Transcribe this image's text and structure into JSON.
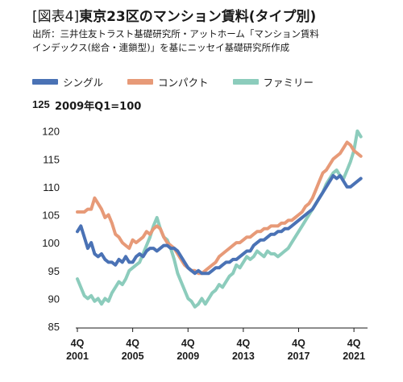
{
  "header": {
    "title_bracket": "[図表4]",
    "title_main": "東京23区のマンション賃料(タイプ別)",
    "source_line1": "出所：三井住友トラスト基礎研究所・アットホーム「マンション賃料",
    "source_line2": "インデックス(総合・連鎖型)」を基にニッセイ基礎研究所作成"
  },
  "chart_data": {
    "type": "line",
    "title": "東京23区のマンション賃料(タイプ別)",
    "axis_note": "2009年Q1=100",
    "ylim": [
      85,
      125
    ],
    "yticks": [
      85,
      90,
      95,
      100,
      105,
      110,
      115,
      120,
      125
    ],
    "xlim": [
      2001.75,
      2022.5
    ],
    "xticks": [
      {
        "x": 2001.75,
        "label_q": "4Q",
        "label_year": "2001"
      },
      {
        "x": 2005.75,
        "label_q": "4Q",
        "label_year": "2005"
      },
      {
        "x": 2009.75,
        "label_q": "4Q",
        "label_year": "2009"
      },
      {
        "x": 2013.75,
        "label_q": "4Q",
        "label_year": "2013"
      },
      {
        "x": 2017.75,
        "label_q": "4Q",
        "label_year": "2017"
      },
      {
        "x": 2021.75,
        "label_q": "4Q",
        "label_year": "2021"
      }
    ],
    "grid": false,
    "legend": "top",
    "series": [
      {
        "name": "シングル",
        "color": "#4a72b5",
        "points": [
          [
            2001.75,
            102.0
          ],
          [
            2002.0,
            103.0
          ],
          [
            2002.25,
            101.0
          ],
          [
            2002.5,
            99.0
          ],
          [
            2002.75,
            100.0
          ],
          [
            2003.0,
            98.0
          ],
          [
            2003.25,
            97.5
          ],
          [
            2003.5,
            98.0
          ],
          [
            2003.75,
            97.0
          ],
          [
            2004.0,
            96.5
          ],
          [
            2004.25,
            96.5
          ],
          [
            2004.5,
            96.0
          ],
          [
            2004.75,
            97.0
          ],
          [
            2005.0,
            96.5
          ],
          [
            2005.25,
            97.5
          ],
          [
            2005.5,
            96.5
          ],
          [
            2005.75,
            96.5
          ],
          [
            2006.0,
            97.5
          ],
          [
            2006.25,
            98.0
          ],
          [
            2006.5,
            97.5
          ],
          [
            2006.75,
            98.5
          ],
          [
            2007.0,
            99.0
          ],
          [
            2007.25,
            99.0
          ],
          [
            2007.5,
            98.5
          ],
          [
            2007.75,
            99.0
          ],
          [
            2008.0,
            99.5
          ],
          [
            2008.25,
            99.5
          ],
          [
            2008.5,
            99.0
          ],
          [
            2008.75,
            99.0
          ],
          [
            2009.0,
            98.5
          ],
          [
            2009.25,
            97.5
          ],
          [
            2009.5,
            96.5
          ],
          [
            2009.75,
            95.5
          ],
          [
            2010.0,
            95.0
          ],
          [
            2010.25,
            94.5
          ],
          [
            2010.5,
            95.0
          ],
          [
            2010.75,
            94.5
          ],
          [
            2011.0,
            94.5
          ],
          [
            2011.25,
            94.5
          ],
          [
            2011.5,
            95.0
          ],
          [
            2011.75,
            95.5
          ],
          [
            2012.0,
            95.5
          ],
          [
            2012.25,
            96.0
          ],
          [
            2012.5,
            96.5
          ],
          [
            2012.75,
            96.5
          ],
          [
            2013.0,
            97.0
          ],
          [
            2013.25,
            97.0
          ],
          [
            2013.5,
            97.5
          ],
          [
            2013.75,
            98.0
          ],
          [
            2014.0,
            98.5
          ],
          [
            2014.25,
            98.5
          ],
          [
            2014.5,
            99.5
          ],
          [
            2014.75,
            100.0
          ],
          [
            2015.0,
            100.5
          ],
          [
            2015.25,
            100.5
          ],
          [
            2015.5,
            101.0
          ],
          [
            2015.75,
            101.5
          ],
          [
            2016.0,
            101.5
          ],
          [
            2016.25,
            102.0
          ],
          [
            2016.5,
            102.0
          ],
          [
            2016.75,
            102.5
          ],
          [
            2017.0,
            102.5
          ],
          [
            2017.25,
            103.0
          ],
          [
            2017.5,
            103.5
          ],
          [
            2017.75,
            104.0
          ],
          [
            2018.0,
            104.5
          ],
          [
            2018.25,
            105.0
          ],
          [
            2018.5,
            105.5
          ],
          [
            2018.75,
            106.0
          ],
          [
            2019.0,
            107.0
          ],
          [
            2019.25,
            108.0
          ],
          [
            2019.5,
            109.0
          ],
          [
            2019.75,
            110.0
          ],
          [
            2020.0,
            111.0
          ],
          [
            2020.25,
            112.0
          ],
          [
            2020.5,
            111.5
          ],
          [
            2020.75,
            112.0
          ],
          [
            2021.0,
            111.0
          ],
          [
            2021.25,
            110.0
          ],
          [
            2021.5,
            110.0
          ],
          [
            2021.75,
            110.5
          ],
          [
            2022.0,
            111.0
          ],
          [
            2022.25,
            111.5
          ]
        ]
      },
      {
        "name": "コンパクト",
        "color": "#e79a78",
        "points": [
          [
            2001.75,
            105.5
          ],
          [
            2002.0,
            105.5
          ],
          [
            2002.25,
            105.5
          ],
          [
            2002.5,
            106.0
          ],
          [
            2002.75,
            106.0
          ],
          [
            2003.0,
            108.0
          ],
          [
            2003.25,
            107.0
          ],
          [
            2003.5,
            106.0
          ],
          [
            2003.75,
            104.5
          ],
          [
            2004.0,
            105.0
          ],
          [
            2004.25,
            103.5
          ],
          [
            2004.5,
            101.5
          ],
          [
            2004.75,
            101.0
          ],
          [
            2005.0,
            100.0
          ],
          [
            2005.25,
            99.5
          ],
          [
            2005.5,
            99.0
          ],
          [
            2005.75,
            100.5
          ],
          [
            2006.0,
            100.0
          ],
          [
            2006.25,
            100.5
          ],
          [
            2006.5,
            101.0
          ],
          [
            2006.75,
            102.0
          ],
          [
            2007.0,
            101.5
          ],
          [
            2007.25,
            102.5
          ],
          [
            2007.5,
            103.0
          ],
          [
            2007.75,
            102.5
          ],
          [
            2008.0,
            101.0
          ],
          [
            2008.25,
            100.0
          ],
          [
            2008.5,
            99.5
          ],
          [
            2008.75,
            99.0
          ],
          [
            2009.0,
            98.0
          ],
          [
            2009.25,
            97.0
          ],
          [
            2009.5,
            96.0
          ],
          [
            2009.75,
            95.5
          ],
          [
            2010.0,
            95.0
          ],
          [
            2010.25,
            95.0
          ],
          [
            2010.5,
            94.5
          ],
          [
            2010.75,
            94.5
          ],
          [
            2011.0,
            95.0
          ],
          [
            2011.25,
            95.5
          ],
          [
            2011.5,
            96.0
          ],
          [
            2011.75,
            96.5
          ],
          [
            2012.0,
            97.5
          ],
          [
            2012.25,
            98.0
          ],
          [
            2012.5,
            98.5
          ],
          [
            2012.75,
            99.0
          ],
          [
            2013.0,
            99.5
          ],
          [
            2013.25,
            100.0
          ],
          [
            2013.5,
            100.0
          ],
          [
            2013.75,
            100.5
          ],
          [
            2014.0,
            101.0
          ],
          [
            2014.25,
            101.0
          ],
          [
            2014.5,
            101.5
          ],
          [
            2014.75,
            102.0
          ],
          [
            2015.0,
            102.0
          ],
          [
            2015.25,
            102.5
          ],
          [
            2015.5,
            102.5
          ],
          [
            2015.75,
            103.0
          ],
          [
            2016.0,
            103.0
          ],
          [
            2016.25,
            103.0
          ],
          [
            2016.5,
            103.5
          ],
          [
            2016.75,
            103.5
          ],
          [
            2017.0,
            104.0
          ],
          [
            2017.25,
            104.0
          ],
          [
            2017.5,
            104.5
          ],
          [
            2017.75,
            105.0
          ],
          [
            2018.0,
            105.5
          ],
          [
            2018.25,
            106.5
          ],
          [
            2018.5,
            107.0
          ],
          [
            2018.75,
            108.0
          ],
          [
            2019.0,
            109.5
          ],
          [
            2019.25,
            111.0
          ],
          [
            2019.5,
            112.5
          ],
          [
            2019.75,
            113.0
          ],
          [
            2020.0,
            114.0
          ],
          [
            2020.25,
            115.0
          ],
          [
            2020.5,
            115.5
          ],
          [
            2020.75,
            116.0
          ],
          [
            2021.0,
            117.0
          ],
          [
            2021.25,
            118.0
          ],
          [
            2021.5,
            117.5
          ],
          [
            2021.75,
            116.5
          ],
          [
            2022.0,
            116.0
          ],
          [
            2022.25,
            115.5
          ]
        ]
      },
      {
        "name": "ファミリー",
        "color": "#8cccbc",
        "points": [
          [
            2001.75,
            93.5
          ],
          [
            2002.0,
            92.0
          ],
          [
            2002.25,
            90.5
          ],
          [
            2002.5,
            90.0
          ],
          [
            2002.75,
            90.5
          ],
          [
            2003.0,
            89.5
          ],
          [
            2003.25,
            90.0
          ],
          [
            2003.5,
            89.0
          ],
          [
            2003.75,
            90.0
          ],
          [
            2004.0,
            89.5
          ],
          [
            2004.25,
            91.0
          ],
          [
            2004.5,
            92.0
          ],
          [
            2004.75,
            93.0
          ],
          [
            2005.0,
            92.5
          ],
          [
            2005.25,
            93.5
          ],
          [
            2005.5,
            95.0
          ],
          [
            2005.75,
            95.5
          ],
          [
            2006.0,
            96.0
          ],
          [
            2006.25,
            96.5
          ],
          [
            2006.5,
            98.0
          ],
          [
            2006.75,
            99.5
          ],
          [
            2007.0,
            101.0
          ],
          [
            2007.25,
            103.0
          ],
          [
            2007.5,
            104.5
          ],
          [
            2007.75,
            102.5
          ],
          [
            2008.0,
            101.0
          ],
          [
            2008.25,
            100.5
          ],
          [
            2008.5,
            99.0
          ],
          [
            2008.75,
            97.0
          ],
          [
            2009.0,
            94.5
          ],
          [
            2009.25,
            93.0
          ],
          [
            2009.5,
            91.5
          ],
          [
            2009.75,
            90.0
          ],
          [
            2010.0,
            89.5
          ],
          [
            2010.25,
            88.5
          ],
          [
            2010.5,
            89.0
          ],
          [
            2010.75,
            90.0
          ],
          [
            2011.0,
            89.0
          ],
          [
            2011.25,
            90.0
          ],
          [
            2011.5,
            91.0
          ],
          [
            2011.75,
            91.5
          ],
          [
            2012.0,
            92.5
          ],
          [
            2012.25,
            92.0
          ],
          [
            2012.5,
            93.0
          ],
          [
            2012.75,
            94.0
          ],
          [
            2013.0,
            94.5
          ],
          [
            2013.25,
            96.0
          ],
          [
            2013.5,
            95.5
          ],
          [
            2013.75,
            96.5
          ],
          [
            2014.0,
            97.5
          ],
          [
            2014.25,
            97.0
          ],
          [
            2014.5,
            97.5
          ],
          [
            2014.75,
            98.5
          ],
          [
            2015.0,
            98.0
          ],
          [
            2015.25,
            97.5
          ],
          [
            2015.5,
            98.5
          ],
          [
            2015.75,
            98.0
          ],
          [
            2016.0,
            98.0
          ],
          [
            2016.25,
            97.5
          ],
          [
            2016.5,
            98.0
          ],
          [
            2016.75,
            98.5
          ],
          [
            2017.0,
            99.0
          ],
          [
            2017.25,
            100.0
          ],
          [
            2017.5,
            101.0
          ],
          [
            2017.75,
            102.0
          ],
          [
            2018.0,
            103.0
          ],
          [
            2018.25,
            104.0
          ],
          [
            2018.5,
            105.0
          ],
          [
            2018.75,
            106.0
          ],
          [
            2019.0,
            107.0
          ],
          [
            2019.25,
            108.0
          ],
          [
            2019.5,
            109.0
          ],
          [
            2019.75,
            110.5
          ],
          [
            2020.0,
            111.5
          ],
          [
            2020.25,
            112.5
          ],
          [
            2020.5,
            113.0
          ],
          [
            2020.75,
            112.0
          ],
          [
            2021.0,
            111.5
          ],
          [
            2021.25,
            113.0
          ],
          [
            2021.5,
            114.5
          ],
          [
            2021.75,
            116.5
          ],
          [
            2022.0,
            120.0
          ],
          [
            2022.25,
            119.0
          ]
        ]
      }
    ]
  }
}
